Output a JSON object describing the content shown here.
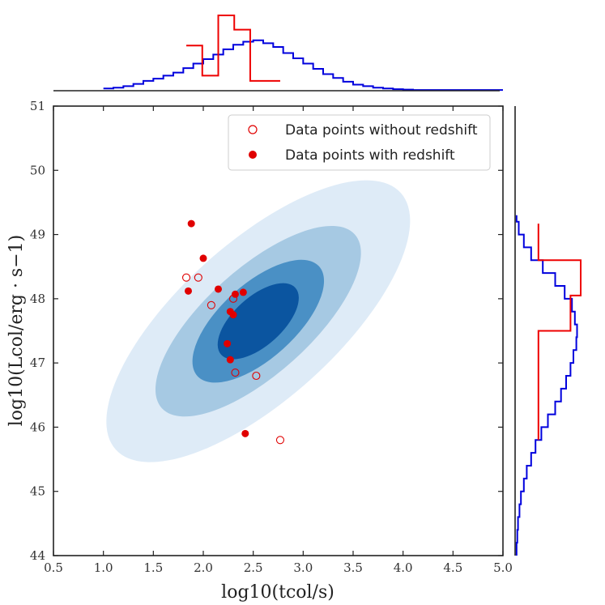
{
  "chart_data": {
    "type": "scatter",
    "xlabel": "log10(tcol/s)",
    "ylabel": "log10(Lcol/erg · s−1)",
    "xlim": [
      0.5,
      5.0
    ],
    "ylim": [
      44,
      51
    ],
    "xticks": [
      "0.5",
      "1.0",
      "1.5",
      "2.0",
      "2.5",
      "3.0",
      "3.5",
      "4.0",
      "4.5",
      "5.0"
    ],
    "yticks": [
      "44",
      "45",
      "46",
      "47",
      "48",
      "49",
      "50",
      "51"
    ],
    "legend_position": "top-right",
    "series": [
      {
        "name": "Data points without redshift",
        "marker": "open-circle",
        "color": "#e00000",
        "points": [
          [
            1.83,
            48.33
          ],
          [
            1.95,
            48.33
          ],
          [
            2.08,
            47.9
          ],
          [
            2.3,
            48.0
          ],
          [
            2.32,
            46.85
          ],
          [
            2.53,
            46.8
          ],
          [
            2.77,
            45.8
          ]
        ]
      },
      {
        "name": "Data points with redshift",
        "marker": "filled-circle",
        "color": "#e00000",
        "points": [
          [
            1.88,
            49.17
          ],
          [
            2.0,
            48.63
          ],
          [
            1.85,
            48.12
          ],
          [
            2.15,
            48.15
          ],
          [
            2.32,
            48.07
          ],
          [
            2.4,
            48.1
          ],
          [
            2.27,
            47.8
          ],
          [
            2.3,
            47.75
          ],
          [
            2.24,
            47.3
          ],
          [
            2.27,
            47.05
          ],
          [
            2.42,
            45.9
          ]
        ]
      }
    ],
    "contours": {
      "center": [
        2.55,
        47.65
      ],
      "rotation_deg": -42,
      "colors": [
        "#deebf7",
        "#a6c9e3",
        "#4a90c5",
        "#0b55a0"
      ],
      "levels": [
        [
          1.92,
          1.22
        ],
        [
          1.3,
          0.82
        ],
        [
          0.82,
          0.58
        ],
        [
          0.5,
          0.38
        ]
      ]
    },
    "marginals": {
      "top_blue": {
        "edges": [
          1.0,
          1.1,
          1.2,
          1.3,
          1.4,
          1.5,
          1.6,
          1.7,
          1.8,
          1.9,
          2.0,
          2.1,
          2.2,
          2.3,
          2.4,
          2.5,
          2.6,
          2.7,
          2.8,
          2.9,
          3.0,
          3.1,
          3.2,
          3.3,
          3.4,
          3.5,
          3.6,
          3.7,
          3.8,
          3.9,
          4.0,
          4.1,
          4.2,
          4.3,
          4.4,
          4.5,
          4.6,
          4.7,
          4.8,
          4.9,
          5.0
        ],
        "values": [
          0.03,
          0.04,
          0.06,
          0.09,
          0.13,
          0.16,
          0.2,
          0.24,
          0.3,
          0.36,
          0.42,
          0.48,
          0.55,
          0.61,
          0.65,
          0.67,
          0.63,
          0.58,
          0.5,
          0.43,
          0.36,
          0.29,
          0.22,
          0.17,
          0.12,
          0.08,
          0.06,
          0.04,
          0.03,
          0.02,
          0.015,
          0.01,
          0.01,
          0.01,
          0.01,
          0.01,
          0.01,
          0.01,
          0.01,
          0.01
        ]
      },
      "top_red": {
        "edges": [
          1.83,
          1.99,
          2.15,
          2.31,
          2.47,
          2.77
        ],
        "values": [
          0.6,
          0.2,
          1.0,
          0.81,
          0.13
        ]
      },
      "right_blue": {
        "edges": [
          44.0,
          44.2,
          44.4,
          44.6,
          44.8,
          45.0,
          45.2,
          45.4,
          45.6,
          45.8,
          46.0,
          46.2,
          46.4,
          46.6,
          46.8,
          47.0,
          47.2,
          47.4,
          47.6,
          47.8,
          48.0,
          48.2,
          48.4,
          48.6,
          48.8,
          49.0,
          49.2,
          49.3
        ],
        "values": [
          0.02,
          0.03,
          0.04,
          0.06,
          0.08,
          0.12,
          0.16,
          0.22,
          0.28,
          0.36,
          0.45,
          0.55,
          0.63,
          0.7,
          0.76,
          0.8,
          0.84,
          0.85,
          0.82,
          0.78,
          0.68,
          0.55,
          0.38,
          0.22,
          0.12,
          0.05,
          0.02
        ]
      },
      "right_red": {
        "edges": [
          45.8,
          47.5,
          48.05,
          48.6,
          49.17
        ],
        "values": [
          0.32,
          0.76,
          0.9,
          0.32
        ]
      }
    }
  }
}
